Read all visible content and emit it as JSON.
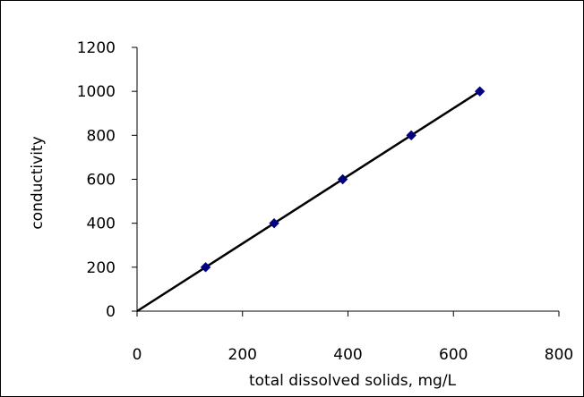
{
  "chart_data": {
    "type": "scatter",
    "xlabel": "total dissolved solids, mg/L",
    "ylabel": "conductivity",
    "xlim": [
      0,
      800
    ],
    "ylim": [
      0,
      1200
    ],
    "xticks": [
      0,
      200,
      400,
      600,
      800
    ],
    "yticks": [
      0,
      200,
      400,
      600,
      800,
      1000,
      1200
    ],
    "grid": false,
    "legend": "none",
    "series": [
      {
        "x": [
          130,
          260,
          390,
          520,
          650
        ],
        "y": [
          200,
          400,
          600,
          800,
          1000
        ],
        "marker": "diamond",
        "color": "#000080"
      }
    ],
    "trendline": {
      "x": [
        0,
        650
      ],
      "y": [
        0,
        1000
      ],
      "color": "#000000"
    }
  }
}
